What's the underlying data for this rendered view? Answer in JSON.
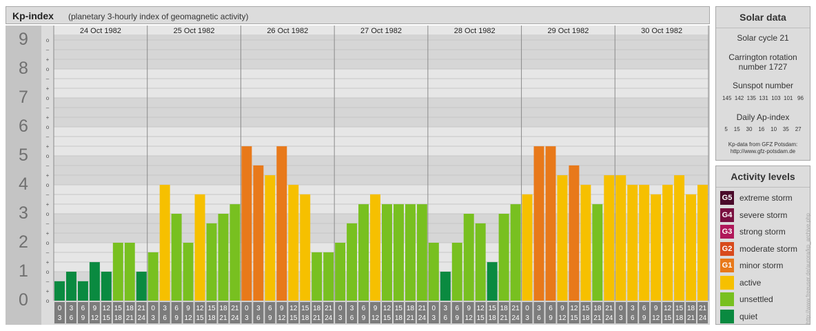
{
  "header": {
    "title": "Kp-index",
    "subtitle": "(planetary 3-hourly index of geomagnetic activity)"
  },
  "solar": {
    "title": "Solar data",
    "cycle": "Solar cycle 21",
    "carrington_line1": "Carrington rotation",
    "carrington_line2": "number 1727",
    "sunspot_label": "Sunspot number",
    "sunspot_values": "145  142  135  131  103  101   96",
    "ap_label": "Daily Ap-index",
    "ap_values": "5    15    30    16    10    35    27",
    "source_line1": "Kp-data from GFZ Potsdam:",
    "source_line2": "http://www.gfz-potsdam.de"
  },
  "levels": {
    "title": "Activity levels",
    "items": [
      {
        "code": "G5",
        "label": "extreme storm",
        "color": "#4a0a2a"
      },
      {
        "code": "G4",
        "label": "severe storm",
        "color": "#7a1040"
      },
      {
        "code": "G3",
        "label": "strong storm",
        "color": "#b0185a"
      },
      {
        "code": "G2",
        "label": "moderate storm",
        "color": "#d84a1c"
      },
      {
        "code": "G1",
        "label": "minor storm",
        "color": "#e8791a"
      },
      {
        "code": "",
        "label": "active",
        "color": "#f6c000"
      },
      {
        "code": "",
        "label": "unsettled",
        "color": "#78c020"
      },
      {
        "code": "",
        "label": "quiet",
        "color": "#0a8a40"
      }
    ]
  },
  "watermark": "http://www.freeuser.de/aurora/kp_archive.php",
  "chart_data": {
    "type": "bar",
    "title": "Kp-index",
    "days": [
      "24 Oct 1982",
      "25 Oct 1982",
      "26 Oct 1982",
      "27 Oct 1982",
      "28 Oct 1982",
      "29 Oct 1982",
      "30 Oct 1982"
    ],
    "interval_start": [
      "0",
      "3",
      "6",
      "9",
      "12",
      "15",
      "18",
      "21"
    ],
    "interval_end": [
      "3",
      "6",
      "9",
      "12",
      "15",
      "18",
      "21",
      "24"
    ],
    "y_ticks": [
      "0",
      "1",
      "2",
      "3",
      "4",
      "5",
      "6",
      "7",
      "8",
      "9"
    ],
    "sub_ticks": [
      "o",
      "+",
      "–"
    ],
    "ylim": [
      0,
      9
    ],
    "values": [
      0.67,
      1.0,
      0.67,
      1.33,
      1.0,
      2.0,
      2.0,
      1.0,
      1.67,
      4.0,
      3.0,
      2.0,
      3.67,
      2.67,
      3.0,
      3.33,
      5.33,
      4.67,
      4.33,
      5.33,
      4.0,
      3.67,
      1.67,
      1.67,
      2.0,
      2.67,
      3.33,
      3.67,
      3.33,
      3.33,
      3.33,
      3.33,
      2.0,
      1.0,
      2.0,
      3.0,
      2.67,
      1.33,
      3.0,
      3.33,
      3.67,
      5.33,
      5.33,
      4.33,
      4.67,
      4.0,
      3.33,
      4.33,
      4.33,
      4.0,
      4.0,
      3.67,
      4.0,
      4.33,
      3.67,
      4.0
    ],
    "colors": {
      "quiet": "#0a8a40",
      "unsettled": "#78c020",
      "active": "#f6c000",
      "minor": "#e8791a",
      "moderate": "#d84a1c"
    }
  }
}
